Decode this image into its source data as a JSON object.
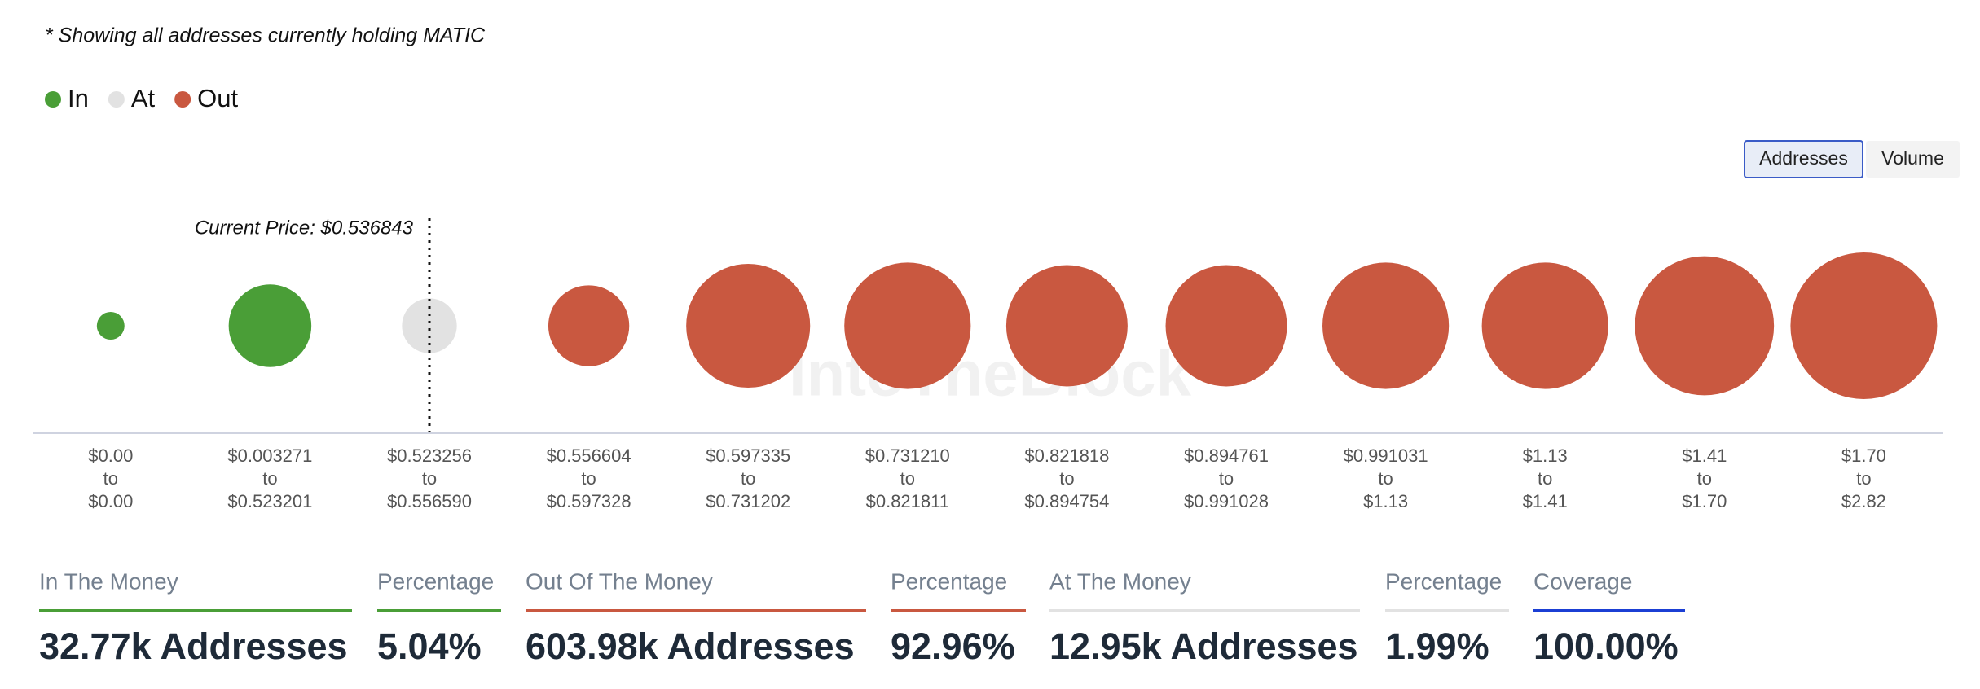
{
  "note": "* Showing all addresses currently holding MATIC",
  "watermark": "IntoTheBlock",
  "buttons": [
    {
      "label": "Addresses",
      "active": true
    },
    {
      "label": "Volume",
      "active": false
    }
  ],
  "chart_data": {
    "type": "bubble",
    "annotation": "Current Price: $0.536843",
    "annotation_category": 2,
    "range_word": "to",
    "categories": [
      {
        "low": "$0.00",
        "high": "$0.00"
      },
      {
        "low": "$0.003271",
        "high": "$0.523201"
      },
      {
        "low": "$0.523256",
        "high": "$0.556590"
      },
      {
        "low": "$0.556604",
        "high": "$0.597328"
      },
      {
        "low": "$0.597335",
        "high": "$0.731202"
      },
      {
        "low": "$0.731210",
        "high": "$0.821811"
      },
      {
        "low": "$0.821818",
        "high": "$0.894754"
      },
      {
        "low": "$0.894761",
        "high": "$0.991028"
      },
      {
        "low": "$0.991031",
        "high": "$1.13"
      },
      {
        "low": "$1.13",
        "high": "$1.41"
      },
      {
        "low": "$1.41",
        "high": "$1.70"
      },
      {
        "low": "$1.70",
        "high": "$2.82"
      }
    ],
    "series": [
      {
        "name": "In",
        "color": "#4a9e37",
        "values": [
          3300,
          29470,
          null,
          null,
          null,
          null,
          null,
          null,
          null,
          null,
          null,
          null
        ]
      },
      {
        "name": "At",
        "color": "#e2e2e2",
        "values": [
          null,
          null,
          12950,
          null,
          null,
          null,
          null,
          null,
          null,
          null,
          null,
          null
        ]
      },
      {
        "name": "Out",
        "color": "#c95840",
        "values": [
          null,
          null,
          null,
          28210,
          66150,
          68880,
          63480,
          63480,
          68880,
          68880,
          83340,
          92680
        ]
      }
    ]
  },
  "stats": [
    {
      "label": "In The Money",
      "value": "32.77k Addresses",
      "color": "#4a9e37"
    },
    {
      "label": "Percentage",
      "value": "5.04%",
      "color": "#4a9e37"
    },
    {
      "label": "Out Of The Money",
      "value": "603.98k Addresses",
      "color": "#c95840"
    },
    {
      "label": "Percentage",
      "value": "92.96%",
      "color": "#c95840"
    },
    {
      "label": "At The Money",
      "value": "12.95k Addresses",
      "color": "#e2e2e2"
    },
    {
      "label": "Percentage",
      "value": "1.99%",
      "color": "#e2e2e2"
    },
    {
      "label": "Coverage",
      "value": "100.00%",
      "color": "#1b3fd4"
    }
  ]
}
